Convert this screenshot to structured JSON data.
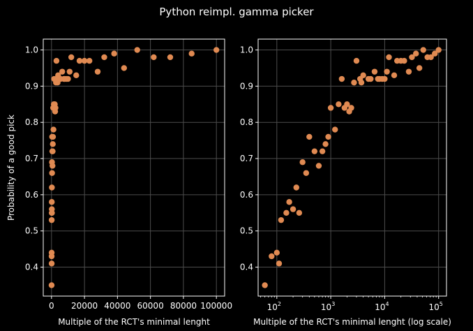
{
  "figure": {
    "suptitle": "Python reimpl. gamma picker",
    "background": "#000000",
    "foreground": "#ffffff",
    "grid_color": "#4d4d4d",
    "marker_color": "#e08a52"
  },
  "chart_data": [
    {
      "type": "scatter",
      "title": "",
      "xlabel": "Multiple of the RCT's minimal lenght",
      "ylabel": "Probability of a good pick",
      "xscale": "linear",
      "xlim": [
        -5000,
        105000
      ],
      "ylim": [
        0.32,
        1.03
      ],
      "xticks": [
        0,
        20000,
        40000,
        60000,
        80000,
        100000
      ],
      "xtick_labels": [
        "0",
        "20000",
        "40000",
        "60000",
        "80000",
        "100000"
      ],
      "yticks": [
        0.4,
        0.5,
        0.6,
        0.7,
        0.8,
        0.9,
        1.0
      ],
      "ytick_labels": [
        "0.4",
        "0.5",
        "0.6",
        "0.7",
        "0.8",
        "0.9",
        "1.0"
      ],
      "grid": true,
      "legend": "none",
      "series": [
        {
          "color": "#e08a52",
          "x": [
            60,
            80,
            100,
            110,
            120,
            150,
            170,
            200,
            230,
            260,
            300,
            350,
            400,
            500,
            600,
            700,
            800,
            900,
            1000,
            1200,
            1400,
            1600,
            1800,
            2000,
            2200,
            2400,
            2700,
            3000,
            3500,
            3700,
            4000,
            5000,
            5500,
            6500,
            7500,
            8000,
            9000,
            10000,
            11000,
            12000,
            15000,
            17000,
            20000,
            23000,
            28000,
            32000,
            38000,
            44000,
            52000,
            62000,
            72000,
            85000,
            100000
          ],
          "y": [
            0.35,
            0.43,
            0.44,
            0.41,
            0.53,
            0.55,
            0.58,
            0.56,
            0.62,
            0.55,
            0.69,
            0.66,
            0.76,
            0.72,
            0.68,
            0.72,
            0.74,
            0.76,
            0.84,
            0.78,
            0.85,
            0.92,
            0.84,
            0.85,
            0.83,
            0.84,
            0.91,
            0.97,
            0.92,
            0.91,
            0.93,
            0.92,
            0.92,
            0.94,
            0.92,
            0.92,
            0.92,
            0.92,
            0.94,
            0.98,
            0.93,
            0.97,
            0.97,
            0.97,
            0.94,
            0.98,
            0.99,
            0.95,
            1.0,
            0.98,
            0.98,
            0.99,
            1.0
          ]
        }
      ]
    },
    {
      "type": "scatter",
      "title": "",
      "xlabel": "Multiple of the RCT's minimal lenght (log scale)",
      "ylabel": "",
      "xscale": "log",
      "xlim": [
        45,
        140000
      ],
      "ylim": [
        0.32,
        1.03
      ],
      "xticks": [
        100,
        1000,
        10000,
        100000
      ],
      "xtick_labels": [
        "10^2",
        "10^3",
        "10^4",
        "10^5"
      ],
      "yticks": [
        0.4,
        0.5,
        0.6,
        0.7,
        0.8,
        0.9,
        1.0
      ],
      "ytick_labels": [
        "0.4",
        "0.5",
        "0.6",
        "0.7",
        "0.8",
        "0.9",
        "1.0"
      ],
      "grid": true,
      "legend": "none",
      "series": [
        {
          "color": "#e08a52",
          "x": [
            60,
            80,
            100,
            110,
            120,
            150,
            170,
            200,
            230,
            260,
            300,
            350,
            400,
            500,
            600,
            700,
            800,
            900,
            1000,
            1200,
            1400,
            1600,
            1800,
            2000,
            2200,
            2400,
            2700,
            3000,
            3500,
            3700,
            4000,
            5000,
            5500,
            6500,
            7500,
            8000,
            9000,
            10000,
            11000,
            12000,
            15000,
            17000,
            20000,
            23000,
            28000,
            32000,
            38000,
            44000,
            52000,
            62000,
            72000,
            85000,
            100000
          ],
          "y": [
            0.35,
            0.43,
            0.44,
            0.41,
            0.53,
            0.55,
            0.58,
            0.56,
            0.62,
            0.55,
            0.69,
            0.66,
            0.76,
            0.72,
            0.68,
            0.72,
            0.74,
            0.76,
            0.84,
            0.78,
            0.85,
            0.92,
            0.84,
            0.85,
            0.83,
            0.84,
            0.91,
            0.97,
            0.92,
            0.91,
            0.93,
            0.92,
            0.92,
            0.94,
            0.92,
            0.92,
            0.92,
            0.92,
            0.94,
            0.98,
            0.93,
            0.97,
            0.97,
            0.97,
            0.94,
            0.98,
            0.99,
            0.95,
            1.0,
            0.98,
            0.98,
            0.99,
            1.0
          ]
        }
      ]
    }
  ]
}
